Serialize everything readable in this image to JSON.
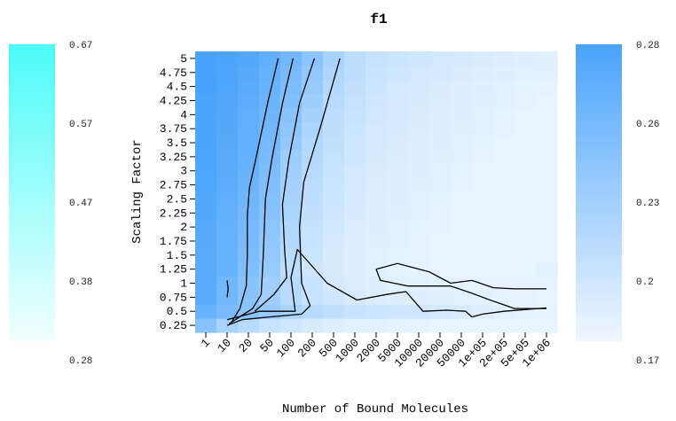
{
  "chart_data": {
    "type": "heatmap",
    "title": "f1",
    "xlabel": "Number of Bound Molecules",
    "ylabel": "Scaling Factor",
    "x_categories": [
      "1",
      "10",
      "20",
      "50",
      "100",
      "200",
      "500",
      "1000",
      "2000",
      "5000",
      "10000",
      "20000",
      "50000",
      "1e+05",
      "2e+05",
      "5e+05",
      "1e+06"
    ],
    "y_categories": [
      "0.25",
      "0.5",
      "0.75",
      "1",
      "1.25",
      "1.5",
      "1.75",
      "2",
      "2.25",
      "2.5",
      "2.75",
      "3",
      "3.25",
      "3.5",
      "3.75",
      "4",
      "4.25",
      "4.5",
      "4.75",
      "5"
    ],
    "colorbars": [
      {
        "side": "left",
        "color_low": "#f2fffe",
        "color_high": "#4cfcfa",
        "ticks": [
          "0.67",
          "0.57",
          "0.47",
          "0.38",
          "0.28"
        ]
      },
      {
        "side": "right",
        "color_low": "#f0f7ff",
        "color_high": "#4aa3fb",
        "ticks": [
          "0.28",
          "0.26",
          "0.23",
          "0.2",
          "0.17"
        ]
      }
    ],
    "heat_color_low": "#f6fbff",
    "heat_color_high": "#4aa3fb",
    "value_range": [
      0.17,
      0.28
    ],
    "grid": false,
    "values": [
      [
        0.24,
        0.22,
        0.21,
        0.2,
        0.195,
        0.19,
        0.185,
        0.183,
        0.182,
        0.181,
        0.18,
        0.179,
        0.179,
        0.178,
        0.178,
        0.178,
        0.178
      ],
      [
        0.26,
        0.25,
        0.24,
        0.23,
        0.22,
        0.21,
        0.205,
        0.2,
        0.198,
        0.196,
        0.195,
        0.193,
        0.19,
        0.185,
        0.182,
        0.181,
        0.18
      ],
      [
        0.27,
        0.255,
        0.24,
        0.225,
        0.21,
        0.2,
        0.195,
        0.19,
        0.188,
        0.186,
        0.185,
        0.184,
        0.183,
        0.182,
        0.181,
        0.18,
        0.179
      ],
      [
        0.27,
        0.255,
        0.24,
        0.225,
        0.21,
        0.2,
        0.193,
        0.188,
        0.185,
        0.183,
        0.182,
        0.181,
        0.18,
        0.18,
        0.18,
        0.18,
        0.18
      ],
      [
        0.27,
        0.26,
        0.245,
        0.23,
        0.205,
        0.195,
        0.19,
        0.185,
        0.183,
        0.181,
        0.18,
        0.179,
        0.179,
        0.178,
        0.178,
        0.178,
        0.183
      ],
      [
        0.27,
        0.26,
        0.248,
        0.232,
        0.21,
        0.198,
        0.19,
        0.186,
        0.183,
        0.181,
        0.18,
        0.179,
        0.178,
        0.178,
        0.178,
        0.178,
        0.178
      ],
      [
        0.272,
        0.262,
        0.25,
        0.235,
        0.212,
        0.2,
        0.192,
        0.187,
        0.184,
        0.182,
        0.18,
        0.179,
        0.178,
        0.178,
        0.178,
        0.178,
        0.178
      ],
      [
        0.272,
        0.262,
        0.252,
        0.238,
        0.215,
        0.202,
        0.194,
        0.188,
        0.185,
        0.183,
        0.181,
        0.18,
        0.179,
        0.178,
        0.178,
        0.178,
        0.178
      ],
      [
        0.274,
        0.264,
        0.254,
        0.24,
        0.218,
        0.204,
        0.196,
        0.19,
        0.186,
        0.184,
        0.182,
        0.18,
        0.179,
        0.178,
        0.178,
        0.178,
        0.178
      ],
      [
        0.274,
        0.266,
        0.256,
        0.242,
        0.22,
        0.206,
        0.197,
        0.191,
        0.187,
        0.185,
        0.183,
        0.181,
        0.179,
        0.178,
        0.178,
        0.178,
        0.178
      ],
      [
        0.276,
        0.268,
        0.258,
        0.245,
        0.222,
        0.208,
        0.198,
        0.192,
        0.188,
        0.186,
        0.184,
        0.182,
        0.18,
        0.179,
        0.178,
        0.178,
        0.178
      ],
      [
        0.276,
        0.27,
        0.26,
        0.248,
        0.225,
        0.21,
        0.2,
        0.193,
        0.189,
        0.187,
        0.185,
        0.183,
        0.181,
        0.179,
        0.178,
        0.178,
        0.178
      ],
      [
        0.277,
        0.27,
        0.262,
        0.25,
        0.228,
        0.212,
        0.202,
        0.195,
        0.19,
        0.188,
        0.186,
        0.184,
        0.182,
        0.18,
        0.179,
        0.178,
        0.178
      ],
      [
        0.278,
        0.272,
        0.264,
        0.252,
        0.232,
        0.215,
        0.204,
        0.196,
        0.191,
        0.189,
        0.187,
        0.185,
        0.183,
        0.181,
        0.179,
        0.178,
        0.178
      ],
      [
        0.278,
        0.273,
        0.265,
        0.254,
        0.236,
        0.218,
        0.206,
        0.198,
        0.192,
        0.19,
        0.188,
        0.186,
        0.184,
        0.182,
        0.18,
        0.179,
        0.178
      ],
      [
        0.279,
        0.274,
        0.266,
        0.256,
        0.24,
        0.222,
        0.208,
        0.2,
        0.194,
        0.191,
        0.189,
        0.187,
        0.185,
        0.183,
        0.181,
        0.179,
        0.178
      ],
      [
        0.279,
        0.275,
        0.268,
        0.258,
        0.244,
        0.226,
        0.21,
        0.202,
        0.195,
        0.192,
        0.19,
        0.188,
        0.186,
        0.184,
        0.182,
        0.18,
        0.179
      ],
      [
        0.28,
        0.276,
        0.27,
        0.26,
        0.247,
        0.23,
        0.213,
        0.204,
        0.197,
        0.193,
        0.191,
        0.189,
        0.187,
        0.185,
        0.183,
        0.181,
        0.18
      ],
      [
        0.28,
        0.277,
        0.272,
        0.262,
        0.25,
        0.234,
        0.216,
        0.206,
        0.199,
        0.195,
        0.193,
        0.191,
        0.189,
        0.187,
        0.185,
        0.183,
        0.182
      ],
      [
        0.28,
        0.278,
        0.274,
        0.265,
        0.254,
        0.238,
        0.22,
        0.208,
        0.201,
        0.197,
        0.195,
        0.193,
        0.191,
        0.189,
        0.187,
        0.185,
        0.184
      ]
    ],
    "contours": [
      [
        [
          1,
          1.05
        ],
        [
          1.05,
          0.9
        ],
        [
          1,
          0.75
        ]
      ],
      [
        [
          1.2,
          0.3
        ],
        [
          1.6,
          0.55
        ],
        [
          1.9,
          0.95
        ],
        [
          1.95,
          1.5
        ],
        [
          1.95,
          2.2
        ],
        [
          2.05,
          2.7
        ],
        [
          2.4,
          3.3
        ],
        [
          2.9,
          4.2
        ],
        [
          3.4,
          5
        ]
      ],
      [
        [
          1.1,
          0.28
        ],
        [
          2.2,
          0.55
        ],
        [
          2.6,
          0.8
        ],
        [
          2.7,
          1.5
        ],
        [
          2.8,
          2.5
        ],
        [
          3.1,
          3.2
        ],
        [
          3.6,
          4.2
        ],
        [
          4.1,
          5
        ]
      ],
      [
        [
          2.3,
          0.5
        ],
        [
          3.2,
          0.8
        ],
        [
          3.8,
          1.1
        ],
        [
          3.7,
          1.6
        ],
        [
          3.6,
          2.4
        ],
        [
          3.9,
          3.2
        ],
        [
          4.4,
          4.2
        ],
        [
          5.1,
          5
        ]
      ],
      [
        [
          1.0,
          0.25
        ],
        [
          1.7,
          0.35
        ],
        [
          3.0,
          0.4
        ],
        [
          4.5,
          0.45
        ],
        [
          4.9,
          0.6
        ],
        [
          4.5,
          1.0
        ],
        [
          4.4,
          2.0
        ],
        [
          4.6,
          2.8
        ],
        [
          5.4,
          3.8
        ],
        [
          6.3,
          5
        ]
      ],
      [
        [
          1.0,
          0.35
        ],
        [
          2.5,
          0.5
        ],
        [
          3.8,
          0.5
        ],
        [
          4.2,
          0.5
        ],
        [
          4.0,
          1.1
        ],
        [
          4.3,
          1.6
        ],
        [
          5.7,
          1.0
        ],
        [
          7.1,
          0.7
        ],
        [
          8.5,
          0.8
        ],
        [
          9.4,
          0.85
        ],
        [
          10.2,
          0.5
        ],
        [
          11.3,
          0.52
        ],
        [
          12.2,
          0.5
        ],
        [
          12.5,
          0.4
        ],
        [
          13,
          0.45
        ],
        [
          14,
          0.5
        ],
        [
          16,
          0.56
        ]
      ],
      [
        [
          8,
          1.25
        ],
        [
          9,
          1.35
        ],
        [
          10.5,
          1.2
        ],
        [
          11.5,
          1.0
        ],
        [
          12.5,
          1.05
        ],
        [
          13.5,
          0.92
        ],
        [
          14.5,
          0.9
        ],
        [
          16,
          0.9
        ]
      ],
      [
        [
          8,
          1.25
        ],
        [
          8.2,
          1.05
        ],
        [
          9.5,
          0.95
        ],
        [
          11.5,
          0.95
        ],
        [
          12.5,
          0.82
        ],
        [
          13.5,
          0.68
        ],
        [
          14.5,
          0.55
        ],
        [
          16,
          0.55
        ]
      ]
    ]
  }
}
